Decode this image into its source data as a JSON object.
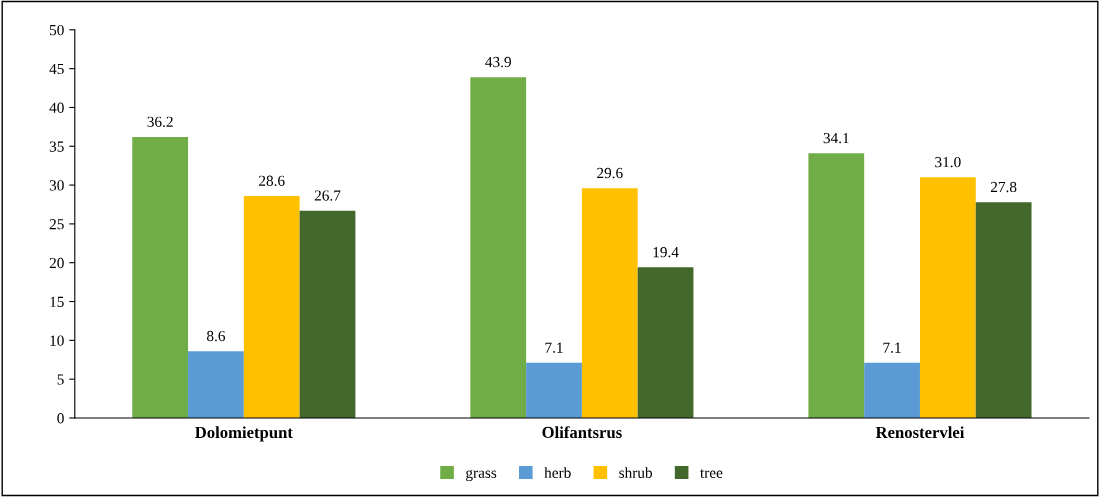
{
  "chart_data": {
    "type": "bar",
    "categories": [
      "Dolomietpunt",
      "Olifantsrus",
      "Renostervlei"
    ],
    "series": [
      {
        "name": "grass",
        "color": "#70ad47",
        "values": [
          36.2,
          43.9,
          34.1
        ],
        "value_labels": [
          "36.2",
          "43.9",
          "34.1"
        ]
      },
      {
        "name": "herb",
        "color": "#5b9bd5",
        "values": [
          8.6,
          7.1,
          7.1
        ],
        "value_labels": [
          "8.6",
          "7.1",
          "7.1"
        ]
      },
      {
        "name": "shrub",
        "color": "#ffc000",
        "values": [
          28.6,
          29.6,
          31.0
        ],
        "value_labels": [
          "28.6",
          "29.6",
          "31.0"
        ]
      },
      {
        "name": "tree",
        "color": "#43682b",
        "values": [
          26.7,
          19.4,
          27.8
        ],
        "value_labels": [
          "26.7",
          "19.4",
          "27.8"
        ]
      }
    ],
    "ylim": [
      0,
      50
    ],
    "yticks": [
      0,
      5,
      10,
      15,
      20,
      25,
      30,
      35,
      40,
      45,
      50
    ],
    "grid": false,
    "legend": "bottom"
  }
}
